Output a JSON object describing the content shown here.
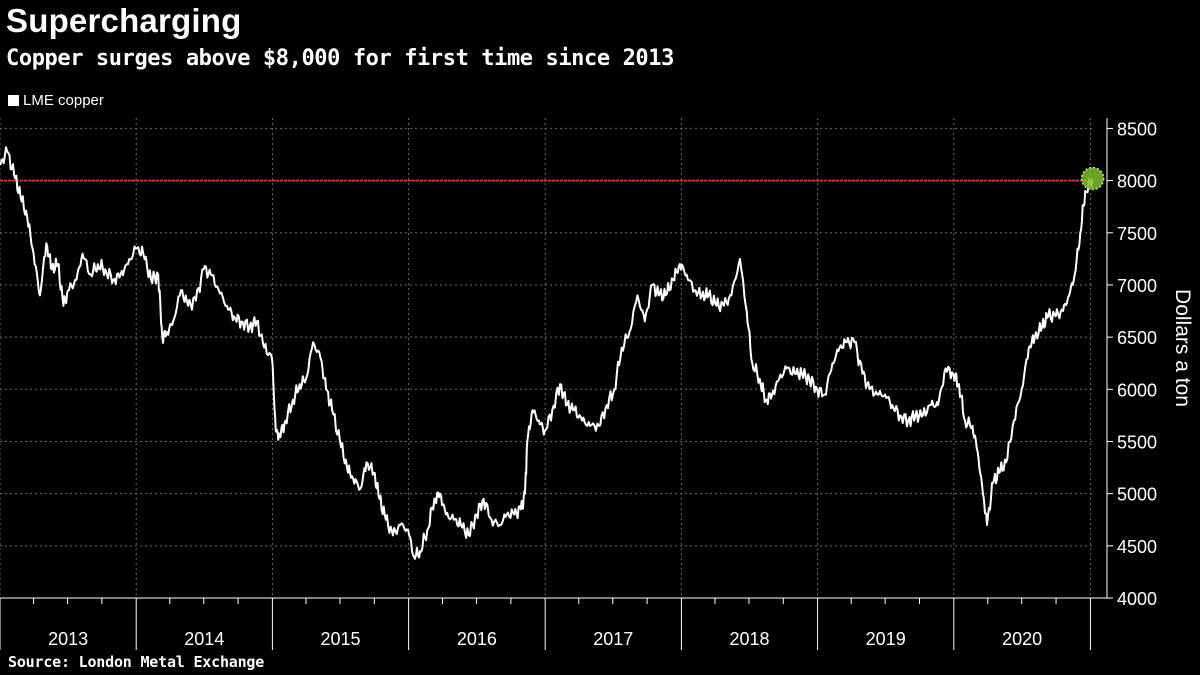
{
  "header": {
    "title": "Supercharging",
    "subtitle": "Copper surges above $8,000 for first time since 2013"
  },
  "legend": {
    "label": "LME copper"
  },
  "footer": {
    "source": "Source:  London Metal Exchange"
  },
  "colors": {
    "background": "#000000",
    "line": "#ffffff",
    "reference_line": "#e0282a",
    "highlight_marker": "#7cbf2a",
    "grid": "#6a6a6a"
  },
  "chart_data": {
    "type": "line",
    "title": "Supercharging",
    "subtitle": "Copper surges above $8,000 for first time since 2013",
    "ylabel": "Dollars a ton",
    "xlabel": "",
    "ylim": [
      4000,
      8600
    ],
    "yticks": [
      4000,
      4500,
      5000,
      5500,
      6000,
      6500,
      7000,
      7500,
      8000,
      8500
    ],
    "xlim": [
      "2013-01-01",
      "2021-01-08"
    ],
    "xtick_labels": [
      "2013",
      "2014",
      "2015",
      "2016",
      "2017",
      "2018",
      "2019",
      "2020"
    ],
    "grid": true,
    "legend_position": "top-left",
    "reference_line": {
      "y": 8000
    },
    "highlight_point": {
      "x": "2021-01-07",
      "y": 8020
    },
    "series": [
      {
        "name": "LME copper",
        "x": [
          "2013-01-02",
          "2013-01-20",
          "2013-02-08",
          "2013-02-25",
          "2013-03-15",
          "2013-04-01",
          "2013-04-18",
          "2013-05-05",
          "2013-05-20",
          "2013-06-05",
          "2013-06-20",
          "2013-07-05",
          "2013-07-25",
          "2013-08-10",
          "2013-09-01",
          "2013-09-20",
          "2013-10-10",
          "2013-11-01",
          "2013-11-20",
          "2013-12-10",
          "2013-12-31",
          "2014-01-20",
          "2014-02-10",
          "2014-03-01",
          "2014-03-12",
          "2014-03-25",
          "2014-04-10",
          "2014-05-01",
          "2014-05-20",
          "2014-06-10",
          "2014-07-01",
          "2014-07-20",
          "2014-08-10",
          "2014-09-01",
          "2014-09-20",
          "2014-10-10",
          "2014-11-01",
          "2014-11-20",
          "2014-12-10",
          "2014-12-31",
          "2015-01-10",
          "2015-01-20",
          "2015-02-05",
          "2015-02-25",
          "2015-03-15",
          "2015-04-01",
          "2015-04-20",
          "2015-05-10",
          "2015-05-25",
          "2015-06-10",
          "2015-07-01",
          "2015-07-20",
          "2015-08-05",
          "2015-08-25",
          "2015-09-10",
          "2015-09-30",
          "2015-10-15",
          "2015-11-01",
          "2015-11-20",
          "2015-12-10",
          "2015-12-31",
          "2016-01-15",
          "2016-02-01",
          "2016-02-20",
          "2016-03-10",
          "2016-03-25",
          "2016-04-10",
          "2016-05-01",
          "2016-05-20",
          "2016-06-10",
          "2016-07-01",
          "2016-07-20",
          "2016-08-10",
          "2016-09-01",
          "2016-09-20",
          "2016-10-10",
          "2016-10-28",
          "2016-11-08",
          "2016-11-14",
          "2016-11-28",
          "2016-12-15",
          "2016-12-31",
          "2017-01-20",
          "2017-02-10",
          "2017-03-01",
          "2017-03-20",
          "2017-04-10",
          "2017-05-01",
          "2017-05-25",
          "2017-06-15",
          "2017-07-05",
          "2017-07-25",
          "2017-08-15",
          "2017-09-05",
          "2017-09-25",
          "2017-10-15",
          "2017-11-01",
          "2017-11-20",
          "2017-12-10",
          "2017-12-28",
          "2018-01-15",
          "2018-02-05",
          "2018-02-25",
          "2018-03-15",
          "2018-04-05",
          "2018-04-25",
          "2018-05-15",
          "2018-06-07",
          "2018-06-25",
          "2018-07-10",
          "2018-07-30",
          "2018-08-15",
          "2018-09-01",
          "2018-09-20",
          "2018-10-10",
          "2018-11-01",
          "2018-11-20",
          "2018-12-10",
          "2018-12-31",
          "2019-01-20",
          "2019-02-10",
          "2019-03-01",
          "2019-03-20",
          "2019-04-10",
          "2019-05-01",
          "2019-05-20",
          "2019-06-10",
          "2019-07-01",
          "2019-07-20",
          "2019-08-10",
          "2019-09-01",
          "2019-09-20",
          "2019-10-10",
          "2019-11-01",
          "2019-11-20",
          "2019-12-10",
          "2019-12-31",
          "2020-01-15",
          "2020-01-31",
          "2020-02-20",
          "2020-03-05",
          "2020-03-19",
          "2020-03-30",
          "2020-04-15",
          "2020-05-01",
          "2020-05-20",
          "2020-06-10",
          "2020-07-01",
          "2020-07-20",
          "2020-08-05",
          "2020-08-25",
          "2020-09-10",
          "2020-09-30",
          "2020-10-20",
          "2020-11-05",
          "2020-11-20",
          "2020-12-05",
          "2020-12-18",
          "2021-01-07"
        ],
        "y": [
          8150,
          8280,
          8050,
          7850,
          7650,
          7300,
          6900,
          7400,
          7150,
          7200,
          6800,
          6950,
          7050,
          7300,
          7100,
          7200,
          7150,
          7050,
          7100,
          7200,
          7350,
          7300,
          7050,
          7100,
          6500,
          6550,
          6650,
          6950,
          6800,
          6850,
          7150,
          7100,
          6950,
          6800,
          6700,
          6650,
          6600,
          6650,
          6400,
          6300,
          5600,
          5550,
          5700,
          5900,
          6050,
          6100,
          6450,
          6300,
          6000,
          5800,
          5500,
          5250,
          5150,
          5050,
          5300,
          5200,
          4950,
          4750,
          4600,
          4700,
          4650,
          4400,
          4450,
          4650,
          4950,
          5000,
          4800,
          4750,
          4700,
          4600,
          4800,
          4950,
          4750,
          4700,
          4800,
          4800,
          4850,
          5000,
          5500,
          5800,
          5700,
          5600,
          5800,
          6050,
          5850,
          5800,
          5700,
          5650,
          5650,
          5850,
          6000,
          6400,
          6550,
          6900,
          6650,
          7000,
          6900,
          6900,
          7050,
          7200,
          7100,
          6950,
          6900,
          6900,
          6800,
          6800,
          6900,
          7250,
          6750,
          6250,
          6100,
          5900,
          5950,
          6100,
          6200,
          6150,
          6150,
          6100,
          6000,
          5950,
          6250,
          6400,
          6450,
          6450,
          6150,
          6000,
          5950,
          5950,
          5850,
          5750,
          5700,
          5750,
          5750,
          5850,
          5850,
          6200,
          6150,
          6050,
          5700,
          5650,
          5400,
          5000,
          4700,
          5100,
          5200,
          5300,
          5700,
          6000,
          6400,
          6500,
          6600,
          6700,
          6700,
          6750,
          6900,
          7100,
          7500,
          7900,
          8020
        ]
      }
    ]
  }
}
